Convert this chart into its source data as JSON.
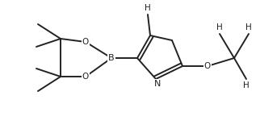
{
  "bg_color": "#ffffff",
  "line_color": "#222222",
  "line_width": 1.4,
  "font_size": 7.5,
  "figsize": [
    3.22,
    1.6
  ],
  "dpi": 100,
  "xlim": [
    0,
    322
  ],
  "ylim": [
    0,
    160
  ]
}
